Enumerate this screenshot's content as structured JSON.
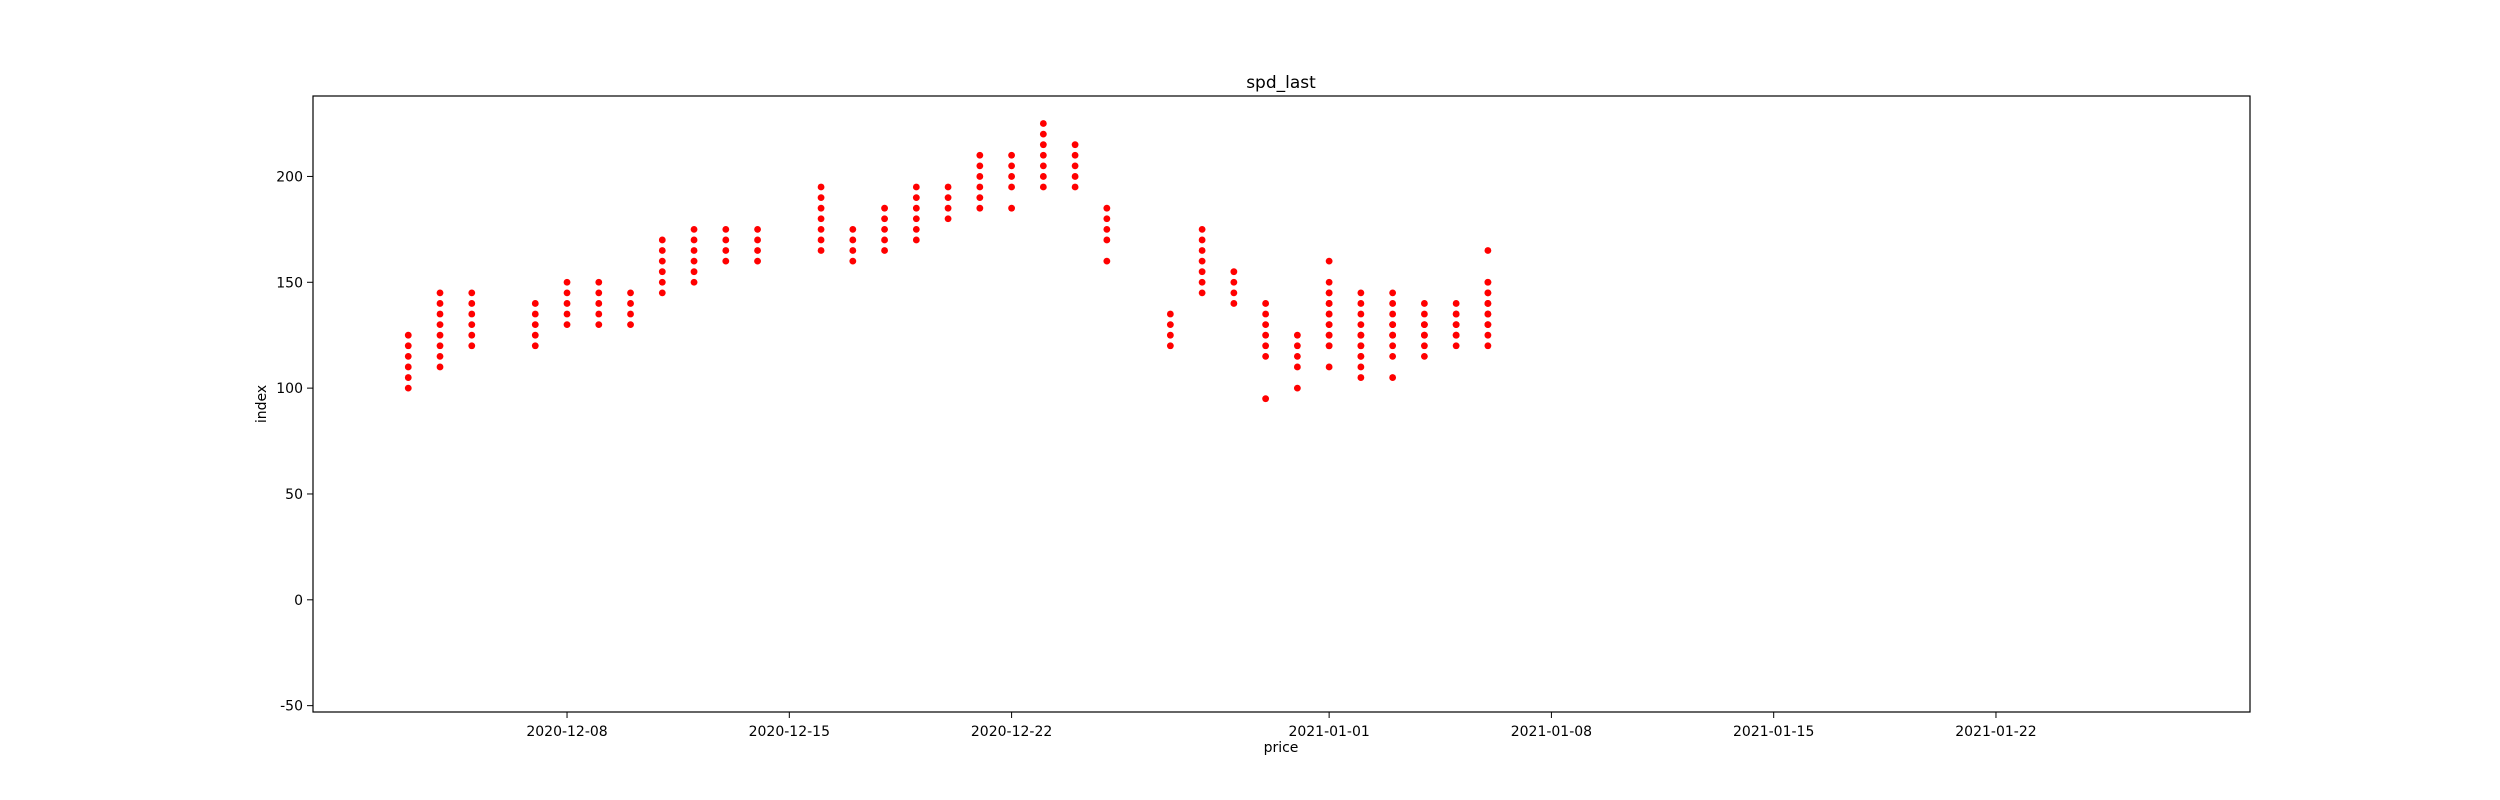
{
  "chart_data": {
    "type": "scatter",
    "title": "spd_last",
    "xlabel": "price",
    "ylabel": "index",
    "xlim": [
      "2020-11-30",
      "2021-01-30"
    ],
    "ylim": [
      -53,
      238
    ],
    "x_ticks": [
      "2020-12-08",
      "2020-12-15",
      "2020-12-22",
      "2021-01-01",
      "2021-01-08",
      "2021-01-15",
      "2021-01-22"
    ],
    "y_ticks": [
      -50,
      0,
      50,
      100,
      150,
      200
    ],
    "grid": false,
    "legend": "none",
    "marker_color": "#ff0000",
    "series": [
      {
        "points": [
          [
            "2020-12-03",
            100
          ],
          [
            "2020-12-03",
            105
          ],
          [
            "2020-12-03",
            110
          ],
          [
            "2020-12-03",
            115
          ],
          [
            "2020-12-03",
            120
          ],
          [
            "2020-12-03",
            125
          ],
          [
            "2020-12-04",
            110
          ],
          [
            "2020-12-04",
            115
          ],
          [
            "2020-12-04",
            120
          ],
          [
            "2020-12-04",
            125
          ],
          [
            "2020-12-04",
            130
          ],
          [
            "2020-12-04",
            135
          ],
          [
            "2020-12-04",
            140
          ],
          [
            "2020-12-04",
            145
          ],
          [
            "2020-12-05",
            120
          ],
          [
            "2020-12-05",
            125
          ],
          [
            "2020-12-05",
            130
          ],
          [
            "2020-12-05",
            135
          ],
          [
            "2020-12-05",
            140
          ],
          [
            "2020-12-05",
            145
          ],
          [
            "2020-12-07",
            120
          ],
          [
            "2020-12-07",
            125
          ],
          [
            "2020-12-07",
            130
          ],
          [
            "2020-12-07",
            135
          ],
          [
            "2020-12-07",
            140
          ],
          [
            "2020-12-08",
            130
          ],
          [
            "2020-12-08",
            135
          ],
          [
            "2020-12-08",
            140
          ],
          [
            "2020-12-08",
            145
          ],
          [
            "2020-12-08",
            150
          ],
          [
            "2020-12-09",
            130
          ],
          [
            "2020-12-09",
            135
          ],
          [
            "2020-12-09",
            140
          ],
          [
            "2020-12-09",
            145
          ],
          [
            "2020-12-09",
            150
          ],
          [
            "2020-12-10",
            130
          ],
          [
            "2020-12-10",
            135
          ],
          [
            "2020-12-10",
            140
          ],
          [
            "2020-12-10",
            145
          ],
          [
            "2020-12-11",
            145
          ],
          [
            "2020-12-11",
            150
          ],
          [
            "2020-12-11",
            155
          ],
          [
            "2020-12-11",
            160
          ],
          [
            "2020-12-11",
            165
          ],
          [
            "2020-12-11",
            170
          ],
          [
            "2020-12-12",
            150
          ],
          [
            "2020-12-12",
            155
          ],
          [
            "2020-12-12",
            160
          ],
          [
            "2020-12-12",
            165
          ],
          [
            "2020-12-12",
            170
          ],
          [
            "2020-12-12",
            175
          ],
          [
            "2020-12-13",
            160
          ],
          [
            "2020-12-13",
            165
          ],
          [
            "2020-12-13",
            170
          ],
          [
            "2020-12-13",
            175
          ],
          [
            "2020-12-14",
            160
          ],
          [
            "2020-12-14",
            165
          ],
          [
            "2020-12-14",
            170
          ],
          [
            "2020-12-14",
            175
          ],
          [
            "2020-12-16",
            165
          ],
          [
            "2020-12-16",
            170
          ],
          [
            "2020-12-16",
            175
          ],
          [
            "2020-12-16",
            180
          ],
          [
            "2020-12-16",
            185
          ],
          [
            "2020-12-16",
            190
          ],
          [
            "2020-12-16",
            195
          ],
          [
            "2020-12-17",
            160
          ],
          [
            "2020-12-17",
            165
          ],
          [
            "2020-12-17",
            170
          ],
          [
            "2020-12-17",
            175
          ],
          [
            "2020-12-18",
            165
          ],
          [
            "2020-12-18",
            170
          ],
          [
            "2020-12-18",
            175
          ],
          [
            "2020-12-18",
            180
          ],
          [
            "2020-12-18",
            185
          ],
          [
            "2020-12-19",
            170
          ],
          [
            "2020-12-19",
            175
          ],
          [
            "2020-12-19",
            180
          ],
          [
            "2020-12-19",
            185
          ],
          [
            "2020-12-19",
            190
          ],
          [
            "2020-12-19",
            195
          ],
          [
            "2020-12-20",
            180
          ],
          [
            "2020-12-20",
            185
          ],
          [
            "2020-12-20",
            190
          ],
          [
            "2020-12-20",
            195
          ],
          [
            "2020-12-21",
            185
          ],
          [
            "2020-12-21",
            190
          ],
          [
            "2020-12-21",
            195
          ],
          [
            "2020-12-21",
            200
          ],
          [
            "2020-12-21",
            205
          ],
          [
            "2020-12-21",
            210
          ],
          [
            "2020-12-22",
            185
          ],
          [
            "2020-12-22",
            195
          ],
          [
            "2020-12-22",
            200
          ],
          [
            "2020-12-22",
            205
          ],
          [
            "2020-12-22",
            210
          ],
          [
            "2020-12-23",
            195
          ],
          [
            "2020-12-23",
            200
          ],
          [
            "2020-12-23",
            205
          ],
          [
            "2020-12-23",
            210
          ],
          [
            "2020-12-23",
            215
          ],
          [
            "2020-12-23",
            220
          ],
          [
            "2020-12-23",
            225
          ],
          [
            "2020-12-24",
            195
          ],
          [
            "2020-12-24",
            200
          ],
          [
            "2020-12-24",
            205
          ],
          [
            "2020-12-24",
            210
          ],
          [
            "2020-12-24",
            215
          ],
          [
            "2020-12-25",
            160
          ],
          [
            "2020-12-25",
            170
          ],
          [
            "2020-12-25",
            175
          ],
          [
            "2020-12-25",
            180
          ],
          [
            "2020-12-25",
            185
          ],
          [
            "2020-12-28",
            145
          ],
          [
            "2020-12-28",
            150
          ],
          [
            "2020-12-28",
            155
          ],
          [
            "2020-12-28",
            160
          ],
          [
            "2020-12-28",
            165
          ],
          [
            "2020-12-28",
            170
          ],
          [
            "2020-12-28",
            175
          ],
          [
            "2020-12-29",
            140
          ],
          [
            "2020-12-29",
            145
          ],
          [
            "2020-12-29",
            150
          ],
          [
            "2020-12-29",
            155
          ],
          [
            "2020-12-30",
            95
          ],
          [
            "2020-12-30",
            115
          ],
          [
            "2020-12-30",
            120
          ],
          [
            "2020-12-30",
            125
          ],
          [
            "2020-12-30",
            130
          ],
          [
            "2020-12-30",
            135
          ],
          [
            "2020-12-30",
            140
          ],
          [
            "2020-12-31",
            100
          ],
          [
            "2020-12-31",
            110
          ],
          [
            "2020-12-31",
            115
          ],
          [
            "2020-12-31",
            120
          ],
          [
            "2020-12-31",
            125
          ],
          [
            "2021-01-01",
            110
          ],
          [
            "2021-01-01",
            120
          ],
          [
            "2021-01-01",
            125
          ],
          [
            "2021-01-01",
            130
          ],
          [
            "2021-01-01",
            135
          ],
          [
            "2021-01-01",
            140
          ],
          [
            "2021-01-01",
            145
          ],
          [
            "2021-01-01",
            150
          ],
          [
            "2021-01-01",
            160
          ],
          [
            "2021-01-02",
            115
          ],
          [
            "2021-01-02",
            120
          ],
          [
            "2021-01-02",
            125
          ],
          [
            "2021-01-02",
            130
          ],
          [
            "2021-01-02",
            135
          ],
          [
            "2021-01-02",
            140
          ],
          [
            "2021-01-02",
            145
          ],
          [
            "2021-01-03",
            125
          ],
          [
            "2021-01-03",
            130
          ],
          [
            "2021-01-03",
            135
          ],
          [
            "2021-01-03",
            140
          ],
          [
            "2021-01-03",
            145
          ],
          [
            "2021-01-04",
            125
          ],
          [
            "2021-01-04",
            130
          ],
          [
            "2021-01-04",
            135
          ],
          [
            "2021-01-04",
            140
          ],
          [
            "2021-01-05",
            125
          ],
          [
            "2021-01-05",
            130
          ],
          [
            "2021-01-05",
            135
          ],
          [
            "2021-01-05",
            140
          ],
          [
            "2021-01-06",
            130
          ],
          [
            "2021-01-06",
            135
          ],
          [
            "2021-01-06",
            140
          ],
          [
            "2021-01-06",
            145
          ],
          [
            "2021-01-06",
            150
          ],
          [
            "2021-01-06",
            165
          ],
          [
            "2020-12-27",
            120
          ],
          [
            "2020-12-27",
            125
          ],
          [
            "2020-12-27",
            130
          ],
          [
            "2020-12-27",
            135
          ],
          [
            "2021-01-01",
            120
          ],
          [
            "2021-01-01",
            125
          ],
          [
            "2021-01-01",
            130
          ],
          [
            "2021-01-01",
            135
          ],
          [
            "2021-01-01",
            140
          ],
          [
            "2021-01-01",
            145
          ],
          [
            "2021-01-02",
            105
          ],
          [
            "2021-01-02",
            110
          ],
          [
            "2021-01-02",
            115
          ],
          [
            "2021-01-02",
            120
          ],
          [
            "2021-01-02",
            125
          ],
          [
            "2021-01-03",
            105
          ],
          [
            "2021-01-03",
            115
          ],
          [
            "2021-01-03",
            120
          ],
          [
            "2021-01-03",
            125
          ],
          [
            "2021-01-03",
            130
          ],
          [
            "2021-01-04",
            115
          ],
          [
            "2021-01-04",
            120
          ],
          [
            "2021-01-04",
            125
          ],
          [
            "2021-01-04",
            130
          ],
          [
            "2021-01-05",
            120
          ],
          [
            "2021-01-05",
            125
          ],
          [
            "2021-01-05",
            130
          ],
          [
            "2021-01-05",
            135
          ],
          [
            "2021-01-06",
            120
          ],
          [
            "2021-01-06",
            125
          ],
          [
            "2021-01-06",
            130
          ],
          [
            "2021-01-06",
            135
          ],
          [
            "2021-01-06",
            140
          ],
          [
            "2021-01-06",
            145
          ],
          [
            "2021-01-06",
            150
          ]
        ]
      }
    ]
  }
}
